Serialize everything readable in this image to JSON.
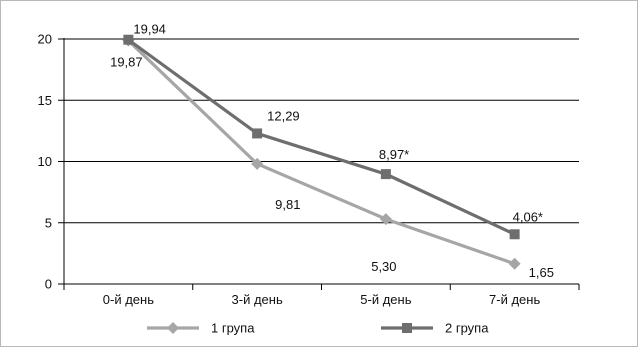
{
  "chart_data": {
    "type": "line",
    "categories": [
      "0-й день",
      "3-й день",
      "5-й день",
      "7-й день"
    ],
    "ylim": [
      0,
      20
    ],
    "yticks": [
      0,
      5,
      10,
      15,
      20
    ],
    "grid": true,
    "legend": "bottom",
    "series": [
      {
        "name": "1 група",
        "values": [
          19.87,
          9.81,
          5.3,
          1.65
        ],
        "labels": [
          "19,87",
          "9,81",
          "5,30",
          "1,65"
        ],
        "color": "#a6a6a6",
        "marker": "diamond"
      },
      {
        "name": "2 група",
        "values": [
          19.94,
          12.29,
          8.97,
          4.06
        ],
        "labels": [
          "19,94",
          "12,29",
          "8,97*",
          "4,06*"
        ],
        "color": "#6e6e6e",
        "marker": "square"
      }
    ]
  }
}
